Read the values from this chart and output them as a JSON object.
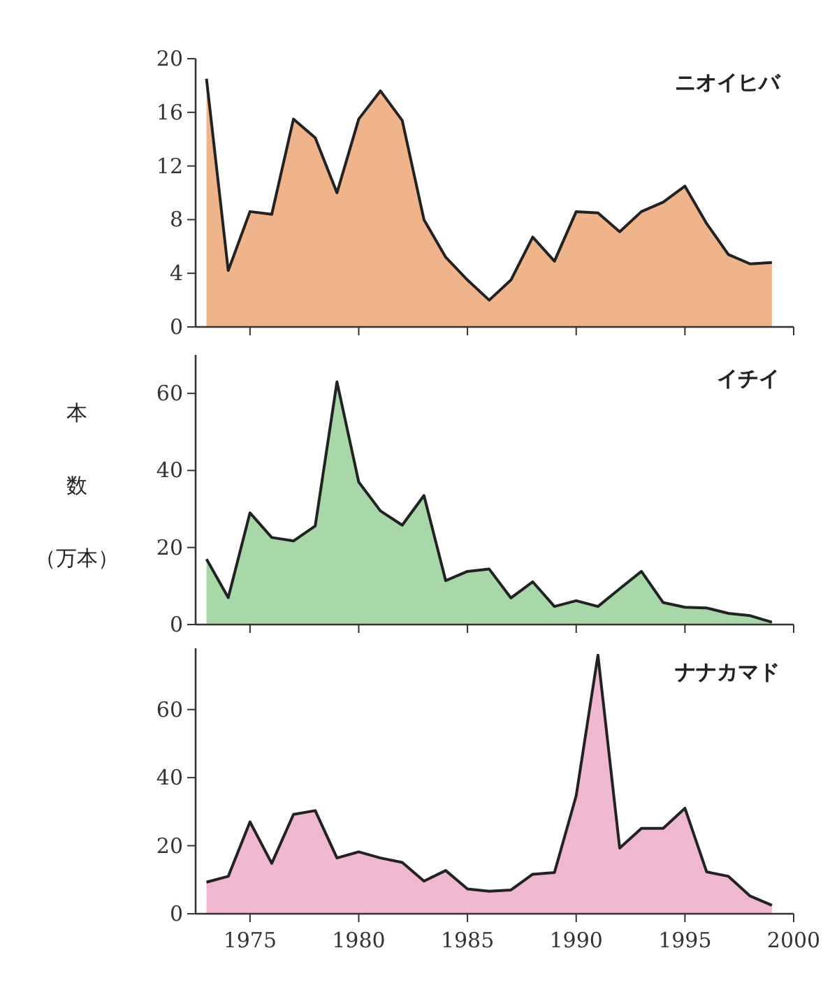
{
  "chart_data": [
    {
      "type": "area",
      "x": [
        1973,
        1974,
        1975,
        1976,
        1977,
        1978,
        1979,
        1980,
        1981,
        1982,
        1983,
        1984,
        1985,
        1986,
        1987,
        1988,
        1989,
        1990,
        1991,
        1992,
        1993,
        1994,
        1995,
        1996,
        1997,
        1998,
        1999
      ],
      "xlim": [
        1972.5,
        2000
      ],
      "xticks": [
        1975,
        1980,
        1985,
        1990,
        1995,
        2000
      ],
      "ylim": [
        0,
        20
      ],
      "yticks": [
        0,
        4,
        8,
        12,
        16,
        20
      ],
      "tick_labels": "y",
      "series": [
        {
          "name": "ニオイヒバ",
          "color": "#f0b48a",
          "values": [
            18.5,
            4.2,
            8.6,
            8.4,
            15.5,
            14.1,
            10.0,
            15.5,
            17.6,
            15.4,
            8.0,
            5.2,
            3.5,
            2.0,
            3.5,
            6.7,
            4.9,
            8.6,
            8.5,
            7.1,
            8.6,
            9.3,
            10.5,
            7.7,
            5.4,
            4.7,
            4.8
          ]
        }
      ]
    },
    {
      "type": "area",
      "x": [
        1973,
        1974,
        1975,
        1976,
        1977,
        1978,
        1979,
        1980,
        1981,
        1982,
        1983,
        1984,
        1985,
        1986,
        1987,
        1988,
        1989,
        1990,
        1991,
        1992,
        1993,
        1994,
        1995,
        1996,
        1997,
        1998,
        1999
      ],
      "xlim": [
        1972.5,
        2000
      ],
      "xticks": [
        1975,
        1980,
        1985,
        1990,
        1995,
        2000
      ],
      "ylim": [
        0,
        70
      ],
      "yticks": [
        0,
        20,
        40,
        60
      ],
      "tick_labels": "y",
      "ylabel": "本数（万本）",
      "series": [
        {
          "name": "イチイ",
          "color": "#a8d8a8",
          "values": [
            17,
            7,
            29,
            22.6,
            21.7,
            25.6,
            63,
            37,
            29.5,
            25.8,
            33.5,
            11.4,
            13.8,
            14.4,
            6.9,
            11.1,
            4.7,
            6.2,
            4.7,
            9.3,
            13.8,
            5.7,
            4.5,
            4.3,
            2.9,
            2.3,
            0.6
          ]
        }
      ]
    },
    {
      "type": "area",
      "x": [
        1973,
        1974,
        1975,
        1976,
        1977,
        1978,
        1979,
        1980,
        1981,
        1982,
        1983,
        1984,
        1985,
        1986,
        1987,
        1988,
        1989,
        1990,
        1991,
        1992,
        1993,
        1994,
        1995,
        1996,
        1997,
        1998,
        1999
      ],
      "xlim": [
        1972.5,
        2000
      ],
      "xticks": [
        1975,
        1980,
        1985,
        1990,
        1995,
        2000
      ],
      "ylim": [
        0,
        78
      ],
      "yticks": [
        0,
        20,
        40,
        60
      ],
      "series": [
        {
          "name": "ナナカマド",
          "color": "#f0b8d0",
          "values": [
            9.3,
            11,
            27,
            14.8,
            29.2,
            30.3,
            16.4,
            18.2,
            16.4,
            15.1,
            9.6,
            12.7,
            7.3,
            6.6,
            7.0,
            11.6,
            12.1,
            34.7,
            76,
            19.3,
            25.1,
            25.1,
            31,
            12.3,
            11,
            5.2,
            2.5
          ]
        }
      ]
    }
  ]
}
